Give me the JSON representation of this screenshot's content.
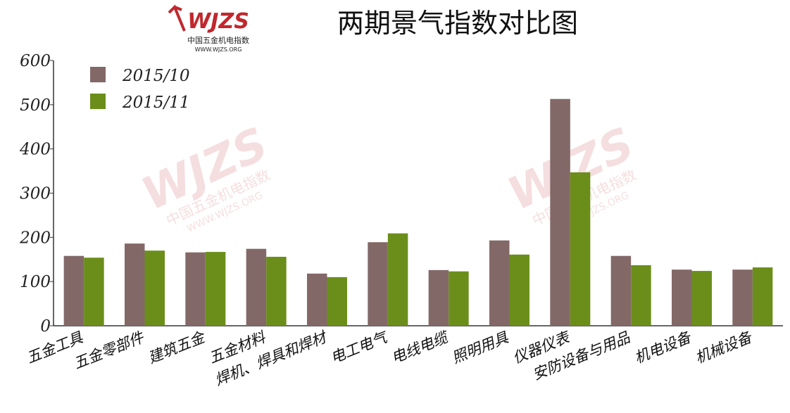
{
  "chart_data": {
    "type": "bar",
    "title": "两期景气指数对比图",
    "logo": {
      "mark": "WJZS",
      "name": "中国五金机电指数",
      "url": "WWW.WJZS.ORG"
    },
    "categories": [
      "五金工具",
      "五金零部件",
      "建筑五金",
      "五金材料",
      "焊机、焊具和焊材",
      "电工电气",
      "电线电缆",
      "照明用具",
      "仪器仪表",
      "安防设备与用品",
      "机电设备",
      "机械设备"
    ],
    "series": [
      {
        "name": "2015/10",
        "color": "#836868",
        "values": [
          158,
          186,
          166,
          174,
          118,
          189,
          126,
          193,
          513,
          158,
          127,
          127
        ]
      },
      {
        "name": "2015/11",
        "color": "#6b8e1a",
        "values": [
          154,
          170,
          167,
          156,
          110,
          209,
          123,
          161,
          347,
          137,
          124,
          132
        ]
      }
    ],
    "ylim": [
      0,
      600
    ],
    "yticks": [
      0,
      100,
      200,
      300,
      400,
      500,
      600
    ],
    "grid": false,
    "legend": "top-left"
  }
}
